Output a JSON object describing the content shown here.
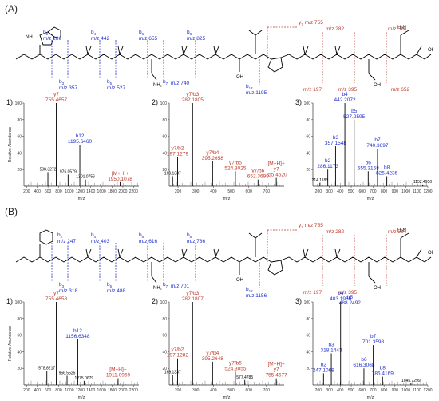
{
  "panel_a": {
    "label": "(A)",
    "struct_labels": {
      "b_blue": [
        {
          "ion": "b",
          "sub": "2",
          "mz": "m/z 286"
        },
        {
          "ion": "b",
          "sub": "4",
          "mz": "m/z 442"
        },
        {
          "ion": "b",
          "sub": "6",
          "mz": "m/z 655"
        },
        {
          "ion": "b",
          "sub": "8",
          "mz": "m/z 825"
        },
        {
          "ion": "b",
          "sub": "3",
          "mz": "m/z 357"
        },
        {
          "ion": "b",
          "sub": "5",
          "mz": "m/z 527"
        },
        {
          "ion": "b",
          "sub": "7",
          "mz": "m/z 740"
        },
        {
          "ion": "b",
          "sub": "12",
          "mz": "m/z 1195"
        }
      ],
      "y_red": [
        {
          "ion": "y",
          "sub": "7",
          "mz": "m/z 755"
        },
        {
          "ion": "y",
          "sub": "7/b2",
          "mz": "m/z 197"
        },
        {
          "ion": "y",
          "sub": "7/b3",
          "mz": "m/z 282"
        },
        {
          "ion": "y",
          "sub": "7/b4",
          "mz": "m/z 395"
        },
        {
          "ion": "y",
          "sub": "7/b5",
          "mz": "m/z 524"
        },
        {
          "ion": "y",
          "sub": "7/b6",
          "mz": "m/z 652"
        }
      ]
    }
  },
  "panel_b": {
    "label": "(B)",
    "struct_labels": {
      "b_blue": [
        {
          "ion": "b",
          "sub": "2",
          "mz": "m/z 247"
        },
        {
          "ion": "b",
          "sub": "4",
          "mz": "m/z 403"
        },
        {
          "ion": "b",
          "sub": "6",
          "mz": "m/z 616"
        },
        {
          "ion": "b",
          "sub": "8",
          "mz": "m/z 786"
        },
        {
          "ion": "b",
          "sub": "3",
          "mz": "m/z 318"
        },
        {
          "ion": "b",
          "sub": "5",
          "mz": "m/z 488"
        },
        {
          "ion": "b",
          "sub": "7",
          "mz": "m/z 701"
        },
        {
          "ion": "b",
          "sub": "12",
          "mz": "m/z 1156"
        }
      ],
      "y_red": [
        {
          "ion": "y",
          "sub": "7",
          "mz": "m/z 755"
        },
        {
          "ion": "y",
          "sub": "7/b2",
          "mz": "m/z 197"
        },
        {
          "ion": "y",
          "sub": "7/b3",
          "mz": "m/z 282"
        },
        {
          "ion": "y",
          "sub": "7/b4",
          "mz": "m/z 395"
        },
        {
          "ion": "y",
          "sub": "7/b5",
          "mz": "m/z 524"
        },
        {
          "ion": "y",
          "sub": "7/b6",
          "mz": "m/z 652"
        }
      ]
    }
  },
  "colors": {
    "blue": "#1f2fd0",
    "red": "#c0392b",
    "peak": "#000000",
    "axis": "#333333"
  },
  "chart_data": [
    {
      "type": "bar",
      "id": "A1",
      "panel_label": "1)",
      "xlabel": "m/z",
      "ylabel": "Relative Abundance",
      "xlim": [
        150,
        2300
      ],
      "ylim": [
        0,
        100
      ],
      "xticks": [
        200,
        400,
        600,
        800,
        1000,
        1200,
        1400,
        1600,
        1800,
        2000,
        2200
      ],
      "yticks": [
        20,
        40,
        60,
        80,
        100
      ],
      "peaks": [
        {
          "x": 598.3272,
          "y": 17,
          "label": "598.3272",
          "color": "black"
        },
        {
          "x": 755.4657,
          "y": 100,
          "label": "y7\n755.4657",
          "color": "red"
        },
        {
          "x": 976.0579,
          "y": 14,
          "label": "976.0579",
          "color": "black"
        },
        {
          "x": 1195.646,
          "y": 50,
          "label": "b12\n1195.6460",
          "color": "blue"
        },
        {
          "x": 1301.0756,
          "y": 8,
          "label": "1301.0756",
          "color": "black"
        },
        {
          "x": 1950.1078,
          "y": 5,
          "label": "[M+H]+\n1950.1078",
          "color": "red"
        }
      ]
    },
    {
      "type": "bar",
      "id": "A2",
      "panel_label": "2)",
      "xlabel": "m/z",
      "ylabel": "",
      "xlim": [
        150,
        800
      ],
      "ylim": [
        0,
        100
      ],
      "xticks": [
        200,
        300,
        400,
        500,
        600,
        700
      ],
      "yticks": [
        20,
        40,
        60,
        80,
        100
      ],
      "peaks": [
        {
          "x": 169.1337,
          "y": 12,
          "label": "169.1337",
          "color": "black"
        },
        {
          "x": 197.1279,
          "y": 35,
          "label": "y7/b2\n197.1279",
          "color": "red"
        },
        {
          "x": 282.1805,
          "y": 100,
          "label": "y7/b3\n282.1805",
          "color": "red"
        },
        {
          "x": 395.2658,
          "y": 30,
          "label": "y7/b4\n395.2658",
          "color": "red"
        },
        {
          "x": 524.3025,
          "y": 18,
          "label": "y7/b5\n524.3025",
          "color": "red"
        },
        {
          "x": 652.3699,
          "y": 8,
          "label": "y7/b6\n652.3699",
          "color": "red"
        },
        {
          "x": 755.462,
          "y": 10,
          "label": "[M+H]+\ny7\n755.4620",
          "color": "red"
        }
      ]
    },
    {
      "type": "bar",
      "id": "A3",
      "panel_label": "3)",
      "xlabel": "m/z",
      "ylabel": "",
      "xlim": [
        150,
        1200
      ],
      "ylim": [
        0,
        100
      ],
      "xticks": [
        200,
        300,
        400,
        500,
        600,
        700,
        800,
        900,
        1000,
        1100,
        1200
      ],
      "yticks": [
        20,
        40,
        60,
        80,
        100
      ],
      "peaks": [
        {
          "x": 214.1183,
          "y": 4,
          "label": "214.1183",
          "color": "black"
        },
        {
          "x": 286.1173,
          "y": 20,
          "label": "b2\n286.1173",
          "color": "blue"
        },
        {
          "x": 357.1548,
          "y": 48,
          "label": "b3\n357.1548",
          "color": "blue"
        },
        {
          "x": 442.2072,
          "y": 100,
          "label": "b4\n442.2072",
          "color": "blue"
        },
        {
          "x": 527.2595,
          "y": 80,
          "label": "b5\n527.2595",
          "color": "blue"
        },
        {
          "x": 655.3168,
          "y": 18,
          "label": "b6\n655.3168",
          "color": "blue"
        },
        {
          "x": 740.3697,
          "y": 45,
          "label": "b7\n740.3697",
          "color": "blue"
        },
        {
          "x": 825.4236,
          "y": 12,
          "label": "b8\n825.4236",
          "color": "blue"
        },
        {
          "x": 1152.495,
          "y": 2,
          "label": "1152.4950",
          "color": "black"
        }
      ]
    },
    {
      "type": "bar",
      "id": "B1",
      "panel_label": "1)",
      "xlabel": "m/z",
      "ylabel": "Relative Abundance",
      "xlim": [
        150,
        2300
      ],
      "ylim": [
        0,
        100
      ],
      "xticks": [
        200,
        400,
        600,
        800,
        1000,
        1200,
        1400,
        1600,
        1800,
        2000,
        2200
      ],
      "yticks": [
        20,
        40,
        60,
        80,
        100
      ],
      "peaks": [
        {
          "x": 578.8217,
          "y": 17,
          "label": "578.8217",
          "color": "black"
        },
        {
          "x": 755.4658,
          "y": 100,
          "label": "y7\n755.4658",
          "color": "red"
        },
        {
          "x": 956.5525,
          "y": 11,
          "label": "956.5525",
          "color": "black"
        },
        {
          "x": 1156.6348,
          "y": 55,
          "label": "b12\n1156.6348",
          "color": "blue"
        },
        {
          "x": 1275.0679,
          "y": 5,
          "label": "1275.0679",
          "color": "black"
        },
        {
          "x": 1911.0969,
          "y": 8,
          "label": "[M+H]+\n1911.0969",
          "color": "red"
        }
      ]
    },
    {
      "type": "bar",
      "id": "B2",
      "panel_label": "2)",
      "xlabel": "m/z",
      "ylabel": "",
      "xlim": [
        150,
        800
      ],
      "ylim": [
        0,
        100
      ],
      "xticks": [
        200,
        300,
        400,
        500,
        600,
        700
      ],
      "yticks": [
        20,
        40,
        60,
        80,
        100
      ],
      "peaks": [
        {
          "x": 169.1337,
          "y": 12,
          "label": "169.1337",
          "color": "black"
        },
        {
          "x": 197.1282,
          "y": 32,
          "label": "y7/b2\n197.1282",
          "color": "red"
        },
        {
          "x": 282.1807,
          "y": 100,
          "label": "y7/b3\n282.1807",
          "color": "red"
        },
        {
          "x": 395.2648,
          "y": 28,
          "label": "y7/b4\n395.2648",
          "color": "red"
        },
        {
          "x": 524.3055,
          "y": 16,
          "label": "y7/b5\n524.3055",
          "color": "red"
        },
        {
          "x": 577.4785,
          "y": 6,
          "label": "577.4785",
          "color": "black"
        },
        {
          "x": 755.4677,
          "y": 8,
          "label": "[M+H]+\ny7\n755.4677",
          "color": "red"
        }
      ]
    },
    {
      "type": "bar",
      "id": "B3",
      "panel_label": "3)",
      "xlabel": "m/z",
      "ylabel": "",
      "xlim": [
        150,
        1200
      ],
      "ylim": [
        0,
        100
      ],
      "xticks": [
        200,
        300,
        400,
        500,
        600,
        700,
        800,
        900,
        1000,
        1100,
        1200
      ],
      "yticks": [
        20,
        40,
        60,
        80,
        100
      ],
      "peaks": [
        {
          "x": 247.1068,
          "y": 14,
          "label": "b2\n247.1068",
          "color": "blue"
        },
        {
          "x": 318.1443,
          "y": 38,
          "label": "b3\n318.1443",
          "color": "blue"
        },
        {
          "x": 403.1968,
          "y": 100,
          "label": "b4\n403.1968",
          "color": "blue"
        },
        {
          "x": 488.2492,
          "y": 95,
          "label": "b5\n488.2492",
          "color": "blue"
        },
        {
          "x": 616.3068,
          "y": 20,
          "label": "b6\n616.3068",
          "color": "blue"
        },
        {
          "x": 701.3598,
          "y": 48,
          "label": "b7\n701.3598",
          "color": "blue"
        },
        {
          "x": 786.4169,
          "y": 10,
          "label": "b8\n786.4169",
          "color": "blue"
        },
        {
          "x": 1045.7299,
          "y": 2,
          "label": "1045.7299",
          "color": "black"
        }
      ]
    }
  ]
}
